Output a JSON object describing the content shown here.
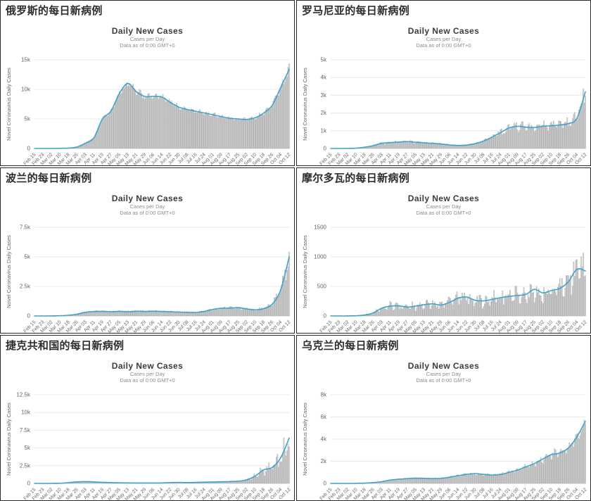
{
  "colors": {
    "line": "#3fa3c9",
    "bar_fill": "#d6d6d6",
    "bar_stroke": "#9b9b9b",
    "grid": "#e8e8e8",
    "axis_text": "#666666",
    "subtitle_text": "#8d8d8d",
    "chart_title_text": "#3b3b3b",
    "panel_title_text": "#2d2d2d",
    "panel_border": "#2a2a2a",
    "background": "#ffffff"
  },
  "shared_categories_note": "all six charts share the same x tick dates",
  "chart_data": [
    {
      "type": "bar+line",
      "panel_title": "俄罗斯的每日新病例",
      "country": "Russia",
      "title": "Daily New Cases",
      "subtitle1": "Cases per Day",
      "subtitle2": "Data as of 0:00 GMT+0",
      "ylabel": "Novel Coronavirus Daily Cases",
      "ylim": [
        0,
        15000
      ],
      "yticks": [
        0,
        5000,
        10000,
        15000
      ],
      "ytick_labels": [
        "0",
        "5k",
        "10k",
        "15k"
      ],
      "categories": [
        "Feb 15",
        "Feb 23",
        "Mar 02",
        "Mar 10",
        "Mar 18",
        "Mar 26",
        "Apr 03",
        "Apr 11",
        "Apr 19",
        "Apr 27",
        "May 05",
        "May 13",
        "May 21",
        "May 29",
        "Jun 06",
        "Jun 14",
        "Jun 22",
        "Jun 30",
        "Jul 08",
        "Jul 16",
        "Jul 24",
        "Aug 01",
        "Aug 09",
        "Aug 17",
        "Aug 25",
        "Sep 02",
        "Sep 10",
        "Sep 18",
        "Sep 26",
        "Oct 04",
        "Oct 12"
      ],
      "line_values": [
        0,
        0,
        5,
        20,
        70,
        250,
        900,
        1800,
        5000,
        6300,
        9300,
        11000,
        9600,
        8800,
        8800,
        8700,
        7800,
        7000,
        6600,
        6300,
        6000,
        5700,
        5400,
        5100,
        5000,
        4900,
        5200,
        6000,
        7300,
        10300,
        13400
      ],
      "bar_jitter": 0.06
    },
    {
      "type": "bar+line",
      "panel_title": "罗马尼亚的每日新病例",
      "country": "Romania",
      "title": "Daily New Cases",
      "subtitle1": "Cases per Day",
      "subtitle2": "Data as of 0:00 GMT+0",
      "ylabel": "Novel Coronavirus Daily Cases",
      "ylim": [
        0,
        5000
      ],
      "yticks": [
        0,
        1000,
        2000,
        3000,
        4000,
        5000
      ],
      "ytick_labels": [
        "0",
        "1k",
        "2k",
        "3k",
        "4k",
        "5k"
      ],
      "categories": [
        "Feb 15",
        "Feb 23",
        "Mar 02",
        "Mar 10",
        "Mar 18",
        "Mar 26",
        "Apr 03",
        "Apr 11",
        "Apr 19",
        "Apr 27",
        "May 05",
        "May 13",
        "May 21",
        "May 29",
        "Jun 06",
        "Jun 14",
        "Jun 22",
        "Jun 30",
        "Jul 08",
        "Jul 16",
        "Jul 24",
        "Aug 01",
        "Aug 09",
        "Aug 17",
        "Aug 25",
        "Sep 02",
        "Sep 10",
        "Sep 18",
        "Sep 26",
        "Oct 04",
        "Oct 12"
      ],
      "line_values": [
        0,
        0,
        3,
        15,
        70,
        160,
        290,
        330,
        360,
        390,
        350,
        320,
        290,
        250,
        200,
        170,
        190,
        270,
        420,
        640,
        890,
        1150,
        1250,
        1200,
        1180,
        1250,
        1280,
        1320,
        1400,
        1700,
        3200
      ],
      "bar_jitter": 0.22
    },
    {
      "type": "bar+line",
      "panel_title": "波兰的每日新病例",
      "country": "Poland",
      "title": "Daily New Cases",
      "subtitle1": "Cases per Day",
      "subtitle2": "Data as of 0:00 GMT+0",
      "ylabel": "Novel Coronavirus Daily Cases",
      "ylim": [
        0,
        7500
      ],
      "yticks": [
        0,
        2500,
        5000,
        7500
      ],
      "ytick_labels": [
        "0",
        "2.5k",
        "5k",
        "7.5k"
      ],
      "categories": [
        "Feb 15",
        "Feb 23",
        "Mar 02",
        "Mar 10",
        "Mar 18",
        "Mar 26",
        "Apr 03",
        "Apr 11",
        "Apr 19",
        "Apr 27",
        "May 05",
        "May 13",
        "May 21",
        "May 29",
        "Jun 06",
        "Jun 14",
        "Jun 22",
        "Jun 30",
        "Jul 08",
        "Jul 16",
        "Jul 24",
        "Aug 01",
        "Aug 09",
        "Aug 17",
        "Aug 25",
        "Sep 02",
        "Sep 10",
        "Sep 18",
        "Sep 26",
        "Oct 04",
        "Oct 12"
      ],
      "line_values": [
        0,
        0,
        4,
        15,
        60,
        150,
        310,
        370,
        390,
        360,
        390,
        360,
        400,
        380,
        400,
        380,
        350,
        330,
        310,
        300,
        380,
        550,
        650,
        660,
        700,
        600,
        520,
        620,
        1000,
        2200,
        5000
      ],
      "bar_jitter": 0.2
    },
    {
      "type": "bar+line",
      "panel_title": "摩尔多瓦的每日新病例",
      "country": "Moldova",
      "title": "Daily New Cases",
      "subtitle1": "Cases per Day",
      "subtitle2": "Data as of 0:00 GMT+0",
      "ylabel": "Novel Coronavirus Daily Cases",
      "ylim": [
        0,
        1500
      ],
      "yticks": [
        0,
        500,
        1000,
        1500
      ],
      "ytick_labels": [
        "0",
        "500",
        "1000",
        "1500"
      ],
      "categories": [
        "Feb 15",
        "Feb 23",
        "Mar 02",
        "Mar 10",
        "Mar 18",
        "Mar 26",
        "Apr 03",
        "Apr 11",
        "Apr 19",
        "Apr 27",
        "May 05",
        "May 13",
        "May 21",
        "May 29",
        "Jun 06",
        "Jun 14",
        "Jun 22",
        "Jun 30",
        "Jul 08",
        "Jul 16",
        "Jul 24",
        "Aug 01",
        "Aug 09",
        "Aug 17",
        "Aug 25",
        "Sep 02",
        "Sep 10",
        "Sep 18",
        "Sep 26",
        "Oct 04",
        "Oct 12"
      ],
      "line_values": [
        0,
        0,
        1,
        4,
        15,
        50,
        130,
        165,
        170,
        150,
        165,
        190,
        205,
        185,
        230,
        300,
        320,
        265,
        255,
        280,
        310,
        330,
        345,
        365,
        450,
        390,
        430,
        465,
        580,
        790,
        760
      ],
      "bar_jitter": 0.42
    },
    {
      "type": "bar+line",
      "panel_title": "捷克共和国的每日新病例",
      "country": "Czech Republic",
      "title": "Daily New Cases",
      "subtitle1": "Cases per Day",
      "subtitle2": "Data as of 0:00 GMT+0",
      "ylabel": "Novel Coronavirus Daily Cases",
      "ylim": [
        0,
        12500
      ],
      "yticks": [
        0,
        2500,
        5000,
        7500,
        10000,
        12500
      ],
      "ytick_labels": [
        "0",
        "2.5k",
        "5k",
        "7.5k",
        "10k",
        "12.5k"
      ],
      "categories": [
        "Feb 15",
        "Feb 23",
        "Mar 02",
        "Mar 10",
        "Mar 18",
        "Mar 26",
        "Apr 03",
        "Apr 11",
        "Apr 19",
        "Apr 27",
        "May 05",
        "May 13",
        "May 21",
        "May 29",
        "Jun 06",
        "Jun 14",
        "Jun 22",
        "Jun 30",
        "Jul 08",
        "Jul 16",
        "Jul 24",
        "Aug 01",
        "Aug 09",
        "Aug 17",
        "Aug 25",
        "Sep 02",
        "Sep 10",
        "Sep 18",
        "Sep 26",
        "Oct 04",
        "Oct 12"
      ],
      "line_values": [
        0,
        0,
        2,
        20,
        110,
        220,
        260,
        210,
        160,
        120,
        85,
        70,
        60,
        55,
        55,
        65,
        120,
        150,
        120,
        140,
        180,
        210,
        230,
        260,
        320,
        500,
        1050,
        1900,
        2250,
        3600,
        6400
      ],
      "bar_jitter": 0.35
    },
    {
      "type": "bar+line",
      "panel_title": "乌克兰的每日新病例",
      "country": "Ukraine",
      "title": "Daily New Cases",
      "subtitle1": "Cases per Day",
      "subtitle2": "Data as of 0:00 GMT+0",
      "ylabel": "Novel Coronavirus Daily Cases",
      "ylim": [
        0,
        8000
      ],
      "yticks": [
        0,
        2000,
        4000,
        6000,
        8000
      ],
      "ytick_labels": [
        "0",
        "2k",
        "4k",
        "6k",
        "8k"
      ],
      "categories": [
        "Feb 15",
        "Feb 23",
        "Mar 02",
        "Mar 10",
        "Mar 18",
        "Mar 26",
        "Apr 03",
        "Apr 11",
        "Apr 19",
        "Apr 27",
        "May 05",
        "May 13",
        "May 21",
        "May 29",
        "Jun 06",
        "Jun 14",
        "Jun 22",
        "Jun 30",
        "Jul 08",
        "Jul 16",
        "Jul 24",
        "Aug 01",
        "Aug 09",
        "Aug 17",
        "Aug 25",
        "Sep 02",
        "Sep 10",
        "Sep 18",
        "Sep 26",
        "Oct 04",
        "Oct 12"
      ],
      "line_values": [
        0,
        0,
        2,
        8,
        25,
        70,
        160,
        300,
        380,
        430,
        480,
        460,
        440,
        460,
        560,
        700,
        810,
        890,
        810,
        760,
        810,
        1000,
        1200,
        1500,
        1800,
        2200,
        2600,
        2750,
        3200,
        4200,
        5600
      ],
      "bar_jitter": 0.15
    }
  ]
}
